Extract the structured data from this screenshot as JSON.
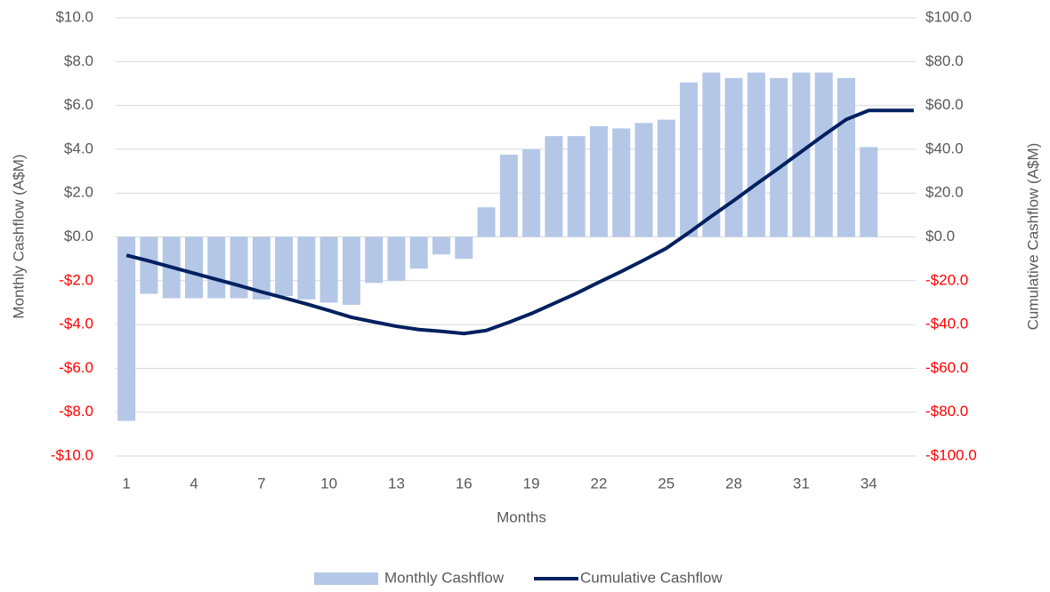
{
  "chart_data": {
    "type": "bar-line",
    "x_label": "Months",
    "y_label": "Monthly Cashflow (A$M)",
    "y2_label": "Cumulative Cashflow (A$M)",
    "categories": [
      "1",
      null,
      null,
      "4",
      null,
      null,
      "7",
      null,
      null,
      "10",
      null,
      null,
      "13",
      null,
      null,
      "16",
      null,
      null,
      "19",
      null,
      null,
      "22",
      null,
      null,
      "25",
      null,
      null,
      "28",
      null,
      null,
      "31",
      null,
      null,
      "34",
      null,
      null
    ],
    "series": [
      {
        "name": "Monthly Cashflow",
        "type": "bar",
        "color": "#b4c7e7",
        "values": [
          -8.4,
          -2.6,
          -2.8,
          -2.8,
          -2.8,
          -2.8,
          -2.85,
          -2.7,
          -2.85,
          -3.0,
          -3.1,
          -2.1,
          -2.0,
          -1.45,
          -0.8,
          -1.0,
          1.35,
          3.75,
          4.0,
          4.6,
          4.6,
          5.05,
          4.95,
          5.2,
          5.35,
          7.05,
          7.5,
          7.25,
          7.5,
          7.25,
          7.5,
          7.5,
          7.25,
          4.1,
          null,
          null
        ]
      },
      {
        "name": "Cumulative Cashflow",
        "type": "line",
        "axis": "y2",
        "color": "#002060",
        "values": [
          -8.4,
          -11.0,
          -13.8,
          -16.6,
          -19.4,
          -22.2,
          -25.1,
          -27.8,
          -30.6,
          -33.6,
          -36.7,
          -38.8,
          -40.8,
          -42.3,
          -43.1,
          -44.1,
          -42.7,
          -39.0,
          -35.0,
          -30.4,
          -25.8,
          -20.7,
          -15.8,
          -10.6,
          -5.2,
          1.9,
          9.4,
          16.6,
          24.1,
          31.4,
          38.9,
          46.4,
          53.6,
          57.7,
          57.7,
          57.7
        ]
      }
    ],
    "ylim": [
      -10,
      10
    ],
    "yticks": [
      {
        "value": -10,
        "label": "-$10.0"
      },
      {
        "value": -8,
        "label": "-$8.0"
      },
      {
        "value": -6,
        "label": "-$6.0"
      },
      {
        "value": -4,
        "label": "-$4.0"
      },
      {
        "value": -2,
        "label": "-$2.0"
      },
      {
        "value": 0,
        "label": "$0.0"
      },
      {
        "value": 2,
        "label": "$2.0"
      },
      {
        "value": 4,
        "label": "$4.0"
      },
      {
        "value": 6,
        "label": "$6.0"
      },
      {
        "value": 8,
        "label": "$8.0"
      },
      {
        "value": 10,
        "label": "$10.0"
      }
    ],
    "y2lim": [
      -100,
      100
    ],
    "y2ticks": [
      {
        "value": -100,
        "label": "-$100.0"
      },
      {
        "value": -80,
        "label": "-$80.0"
      },
      {
        "value": -60,
        "label": "-$60.0"
      },
      {
        "value": -40,
        "label": "-$40.0"
      },
      {
        "value": -20,
        "label": "-$20.0"
      },
      {
        "value": 0,
        "label": "$0.0"
      },
      {
        "value": 20,
        "label": "$20.0"
      },
      {
        "value": 40,
        "label": "$40.0"
      },
      {
        "value": 60,
        "label": "$60.0"
      },
      {
        "value": 80,
        "label": "$80.0"
      },
      {
        "value": 100,
        "label": "$100.0"
      }
    ],
    "negative_tick_color": "#ff0000",
    "grid": true,
    "legend": "bottom"
  }
}
